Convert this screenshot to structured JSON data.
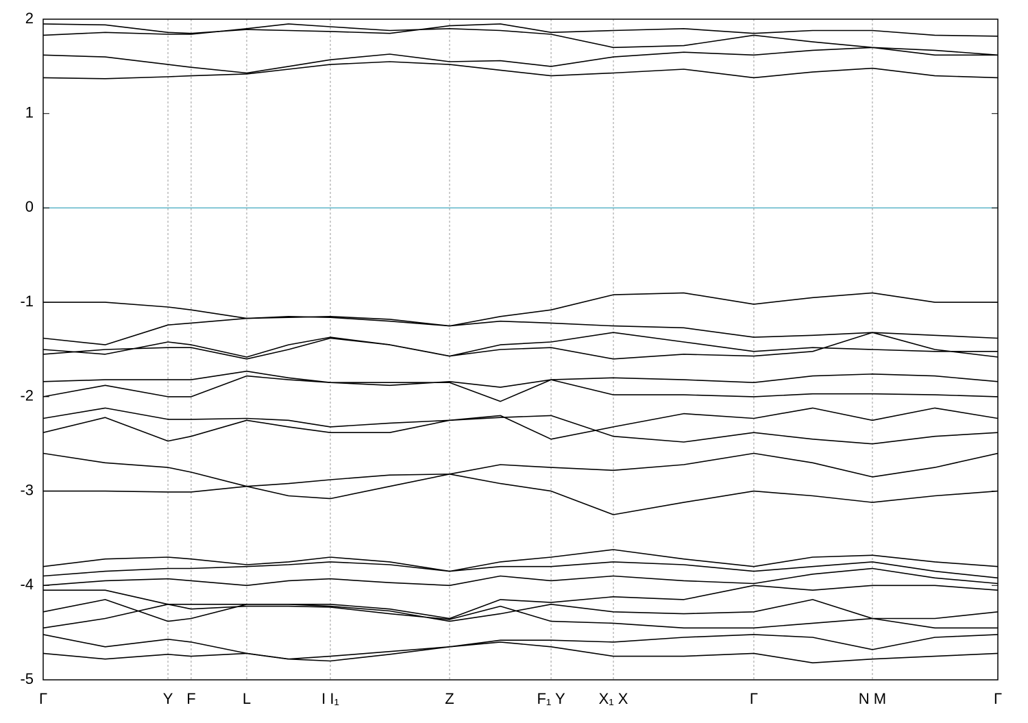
{
  "chart_data": {
    "type": "line",
    "x": [
      0,
      0.065,
      0.1307,
      0.155,
      0.2132,
      0.257,
      0.3008,
      0.363,
      0.4257,
      0.479,
      0.532,
      0.5973,
      0.671,
      0.7444,
      0.806,
      0.8686,
      0.934,
      1
    ],
    "xlim": [
      0,
      1
    ],
    "xticks": [
      {
        "value": 0,
        "label": "Γ"
      },
      {
        "value": 0.1307,
        "label": "Y"
      },
      {
        "value": 0.155,
        "label": "F"
      },
      {
        "value": 0.2132,
        "label": "L"
      },
      {
        "value": 0.3008,
        "label": "I I₁"
      },
      {
        "value": 0.4257,
        "label": "Z"
      },
      {
        "value": 0.532,
        "label": "F₁ Y"
      },
      {
        "value": 0.5973,
        "label": "X₁ X"
      },
      {
        "value": 0.7444,
        "label": "Γ"
      },
      {
        "value": 0.8686,
        "label": "N M"
      },
      {
        "value": 1,
        "label": "Γ"
      }
    ],
    "ylim": [
      -5,
      2
    ],
    "yticks": [
      -5,
      -4,
      -3,
      -2,
      -1,
      0,
      1,
      2
    ],
    "grid": "x-dashed",
    "fermi_level": 0,
    "fermi_color": "#5ab4c8",
    "series": [
      {
        "color": "#000000",
        "values": [
          1.38,
          1.37,
          1.39,
          1.4,
          1.42,
          1.47,
          1.52,
          1.55,
          1.52,
          1.46,
          1.4,
          1.43,
          1.47,
          1.38,
          1.44,
          1.48,
          1.4,
          1.38
        ]
      },
      {
        "color": "#000000",
        "values": [
          1.62,
          1.6,
          1.52,
          1.49,
          1.43,
          1.5,
          1.57,
          1.63,
          1.55,
          1.56,
          1.5,
          1.6,
          1.65,
          1.62,
          1.67,
          1.7,
          1.67,
          1.62
        ]
      },
      {
        "color": "#000000",
        "values": [
          1.83,
          1.86,
          1.84,
          1.84,
          1.9,
          1.95,
          1.92,
          1.88,
          1.9,
          1.88,
          1.84,
          1.7,
          1.72,
          1.83,
          1.76,
          1.7,
          1.62,
          1.62
        ]
      },
      {
        "color": "#000000",
        "values": [
          1.95,
          1.94,
          1.86,
          1.85,
          1.89,
          1.88,
          1.87,
          1.85,
          1.93,
          1.95,
          1.86,
          1.88,
          1.9,
          1.85,
          1.88,
          1.88,
          1.83,
          1.82
        ]
      },
      {
        "color": "#000000",
        "values": [
          -1.0,
          -1.0,
          -1.05,
          -1.08,
          -1.17,
          -1.16,
          -1.15,
          -1.18,
          -1.25,
          -1.15,
          -1.08,
          -0.92,
          -0.9,
          -1.02,
          -0.95,
          -0.9,
          -1.0,
          -1.0
        ]
      },
      {
        "color": "#000000",
        "values": [
          -1.38,
          -1.45,
          -1.24,
          -1.22,
          -1.17,
          -1.15,
          -1.16,
          -1.2,
          -1.25,
          -1.2,
          -1.22,
          -1.25,
          -1.27,
          -1.37,
          -1.35,
          -1.32,
          -1.35,
          -1.38
        ]
      },
      {
        "color": "#000000",
        "values": [
          -1.5,
          -1.55,
          -1.42,
          -1.45,
          -1.58,
          -1.45,
          -1.37,
          -1.45,
          -1.57,
          -1.45,
          -1.42,
          -1.32,
          -1.42,
          -1.52,
          -1.48,
          -1.5,
          -1.52,
          -1.52
        ]
      },
      {
        "color": "#000000",
        "values": [
          -1.55,
          -1.5,
          -1.48,
          -1.48,
          -1.6,
          -1.5,
          -1.38,
          -1.45,
          -1.57,
          -1.5,
          -1.48,
          -1.6,
          -1.55,
          -1.57,
          -1.52,
          -1.32,
          -1.5,
          -1.58
        ]
      },
      {
        "color": "#000000",
        "values": [
          -1.84,
          -1.82,
          -1.82,
          -1.82,
          -1.73,
          -1.8,
          -1.85,
          -1.88,
          -1.84,
          -1.9,
          -1.82,
          -1.8,
          -1.82,
          -1.85,
          -1.78,
          -1.76,
          -1.78,
          -1.84
        ]
      },
      {
        "color": "#000000",
        "values": [
          -2.0,
          -1.88,
          -2.0,
          -2.0,
          -1.78,
          -1.82,
          -1.85,
          -1.85,
          -1.85,
          -2.05,
          -1.82,
          -1.98,
          -1.98,
          -2.0,
          -1.97,
          -1.97,
          -1.98,
          -2.0
        ]
      },
      {
        "color": "#000000",
        "values": [
          -2.23,
          -2.12,
          -2.24,
          -2.24,
          -2.23,
          -2.25,
          -2.32,
          -2.28,
          -2.25,
          -2.2,
          -2.45,
          -2.32,
          -2.18,
          -2.23,
          -2.12,
          -2.25,
          -2.12,
          -2.23
        ]
      },
      {
        "color": "#000000",
        "values": [
          -2.38,
          -2.22,
          -2.47,
          -2.42,
          -2.25,
          -2.32,
          -2.38,
          -2.38,
          -2.25,
          -2.22,
          -2.2,
          -2.42,
          -2.48,
          -2.38,
          -2.45,
          -2.5,
          -2.42,
          -2.38
        ]
      },
      {
        "color": "#000000",
        "values": [
          -2.6,
          -2.7,
          -2.75,
          -2.8,
          -2.95,
          -2.92,
          -2.88,
          -2.83,
          -2.82,
          -2.72,
          -2.75,
          -2.78,
          -2.72,
          -2.6,
          -2.7,
          -2.85,
          -2.75,
          -2.6
        ]
      },
      {
        "color": "#000000",
        "values": [
          -3.0,
          -3.0,
          -3.01,
          -3.01,
          -2.95,
          -3.05,
          -3.08,
          -2.95,
          -2.82,
          -2.92,
          -3.0,
          -3.25,
          -3.12,
          -3.0,
          -3.05,
          -3.12,
          -3.05,
          -3.0
        ]
      },
      {
        "color": "#000000",
        "values": [
          -3.8,
          -3.72,
          -3.7,
          -3.72,
          -3.78,
          -3.75,
          -3.7,
          -3.75,
          -3.85,
          -3.75,
          -3.7,
          -3.62,
          -3.72,
          -3.8,
          -3.7,
          -3.68,
          -3.75,
          -3.8
        ]
      },
      {
        "color": "#000000",
        "values": [
          -3.9,
          -3.85,
          -3.82,
          -3.82,
          -3.8,
          -3.78,
          -3.75,
          -3.78,
          -3.85,
          -3.8,
          -3.8,
          -3.75,
          -3.78,
          -3.85,
          -3.8,
          -3.75,
          -3.85,
          -3.92
        ]
      },
      {
        "color": "#000000",
        "values": [
          -4.0,
          -3.95,
          -3.93,
          -3.95,
          -4.0,
          -3.95,
          -3.93,
          -3.97,
          -4.0,
          -3.9,
          -3.95,
          -3.9,
          -3.95,
          -3.98,
          -3.88,
          -3.82,
          -3.92,
          -3.98
        ]
      },
      {
        "color": "#000000",
        "values": [
          -4.05,
          -4.05,
          -4.2,
          -4.2,
          -4.2,
          -4.2,
          -4.2,
          -4.25,
          -4.35,
          -4.15,
          -4.18,
          -4.12,
          -4.15,
          -4.0,
          -4.05,
          -4.0,
          -4.0,
          -4.05
        ]
      },
      {
        "color": "#000000",
        "values": [
          -4.28,
          -4.15,
          -4.38,
          -4.35,
          -4.2,
          -4.2,
          -4.22,
          -4.27,
          -4.38,
          -4.3,
          -4.2,
          -4.28,
          -4.3,
          -4.28,
          -4.15,
          -4.35,
          -4.35,
          -4.28
        ]
      },
      {
        "color": "#000000",
        "values": [
          -4.45,
          -4.35,
          -4.2,
          -4.25,
          -4.22,
          -4.22,
          -4.23,
          -4.3,
          -4.36,
          -4.22,
          -4.38,
          -4.4,
          -4.45,
          -4.45,
          -4.4,
          -4.35,
          -4.45,
          -4.45
        ]
      },
      {
        "color": "#000000",
        "values": [
          -4.52,
          -4.65,
          -4.57,
          -4.6,
          -4.72,
          -4.78,
          -4.75,
          -4.7,
          -4.65,
          -4.58,
          -4.58,
          -4.6,
          -4.55,
          -4.52,
          -4.55,
          -4.68,
          -4.55,
          -4.52
        ]
      },
      {
        "color": "#000000",
        "values": [
          -4.72,
          -4.78,
          -4.73,
          -4.75,
          -4.72,
          -4.78,
          -4.8,
          -4.73,
          -4.65,
          -4.6,
          -4.65,
          -4.75,
          -4.75,
          -4.72,
          -4.82,
          -4.78,
          -4.75,
          -4.72
        ]
      }
    ]
  }
}
